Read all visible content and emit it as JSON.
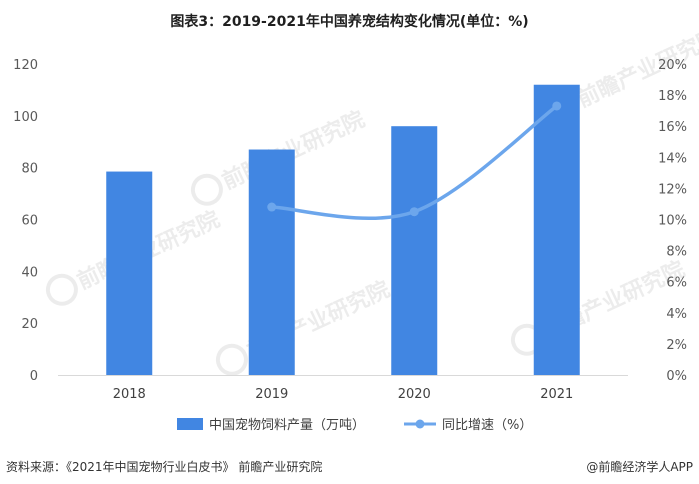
{
  "title": "图表3：2019-2021年中国养宠结构变化情况(单位：%)",
  "chart_data": {
    "type": "bar",
    "categories": [
      "2018",
      "2019",
      "2020",
      "2021"
    ],
    "series": [
      {
        "name": "中国宠物饲料产量（万吨）",
        "type": "bar",
        "axis": "left",
        "values": [
          78.5,
          87,
          96,
          112
        ],
        "color": "#4186E2"
      },
      {
        "name": "同比增速（%）",
        "type": "line",
        "axis": "right",
        "values": [
          null,
          10.8,
          10.5,
          17.3
        ],
        "color": "#6CA6EC"
      }
    ],
    "y_left": {
      "min": 0,
      "max": 120,
      "ticks": [
        "0",
        "20",
        "40",
        "60",
        "80",
        "100",
        "120"
      ]
    },
    "y_right": {
      "min": 0,
      "max": 20,
      "ticks": [
        "0%",
        "2%",
        "4%",
        "6%",
        "8%",
        "10%",
        "12%",
        "14%",
        "16%",
        "18%",
        "20%"
      ]
    },
    "grid": false,
    "legend_position": "bottom"
  },
  "watermark": "前瞻产业研究院",
  "footer": {
    "source": "资料来源：《2021年中国宠物行业白皮书》 前瞻产业研究院",
    "brand": "@前瞻经济学人APP"
  }
}
